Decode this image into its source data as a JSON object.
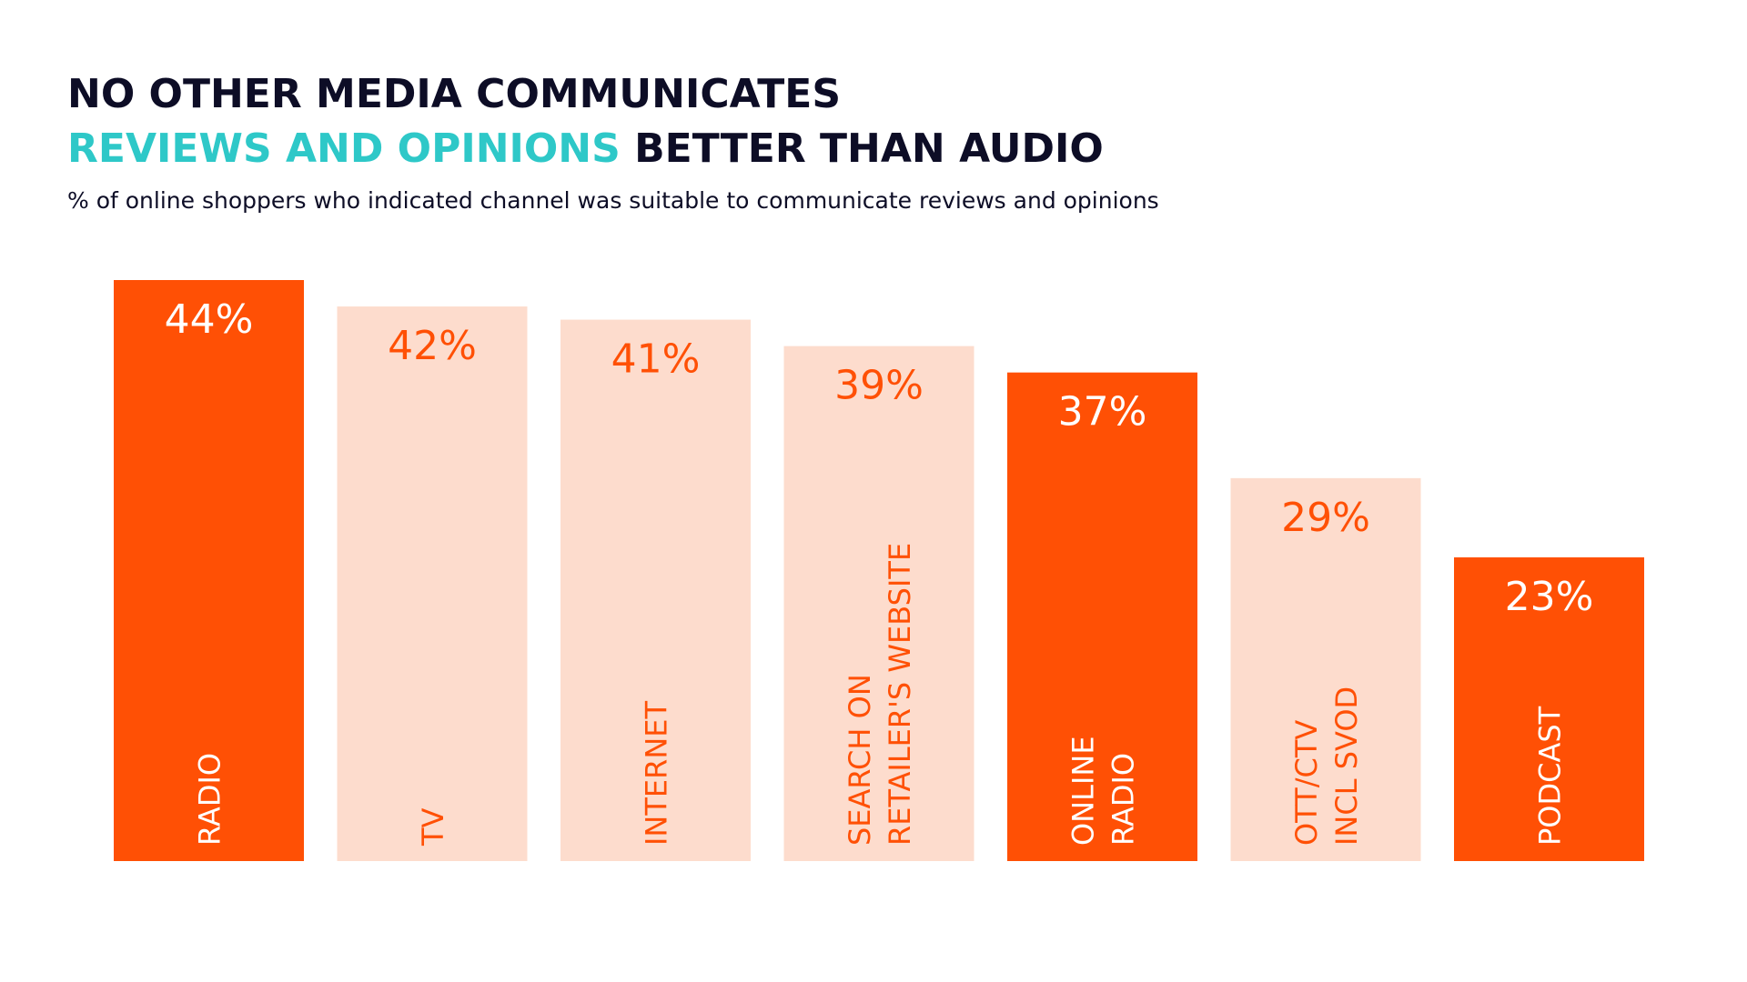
{
  "title": {
    "line1": "NO OTHER MEDIA COMMUNICATES",
    "line2_accent": "REVIEWS AND OPINIONS",
    "line2_rest": " BETTER THAN AUDIO"
  },
  "subtitle": "% of online shoppers who indicated channel was suitable to communicate reviews and opinions",
  "colors": {
    "title": "#0d0d26",
    "accent": "#2ec8c8",
    "audio_bar": "#ff5005",
    "other_bar": "#fddccd",
    "audio_text": "#ffffff",
    "other_text": "#ff5005"
  },
  "chart_data": {
    "type": "bar",
    "categories": [
      "RADIO",
      "TV",
      "INTERNET",
      "SEARCH ON RETAILER'S WEBSITE",
      "ONLINE RADIO",
      "OTT/CTV INCL SVOD",
      "PODCAST"
    ],
    "category_lines": [
      [
        "RADIO"
      ],
      [
        "TV"
      ],
      [
        "INTERNET"
      ],
      [
        "SEARCH ON",
        "RETAILER'S WEBSITE"
      ],
      [
        "ONLINE",
        "RADIO"
      ],
      [
        "OTT/CTV",
        "INCL SVOD"
      ],
      [
        "PODCAST"
      ]
    ],
    "values": [
      44,
      42,
      41,
      39,
      37,
      29,
      23
    ],
    "value_labels": [
      "44%",
      "42%",
      "41%",
      "39%",
      "37%",
      "29%",
      "23%"
    ],
    "highlight": [
      true,
      false,
      false,
      false,
      true,
      false,
      true
    ],
    "unit": "%",
    "ylim": [
      0,
      44
    ],
    "grid": false,
    "legend": "none"
  }
}
